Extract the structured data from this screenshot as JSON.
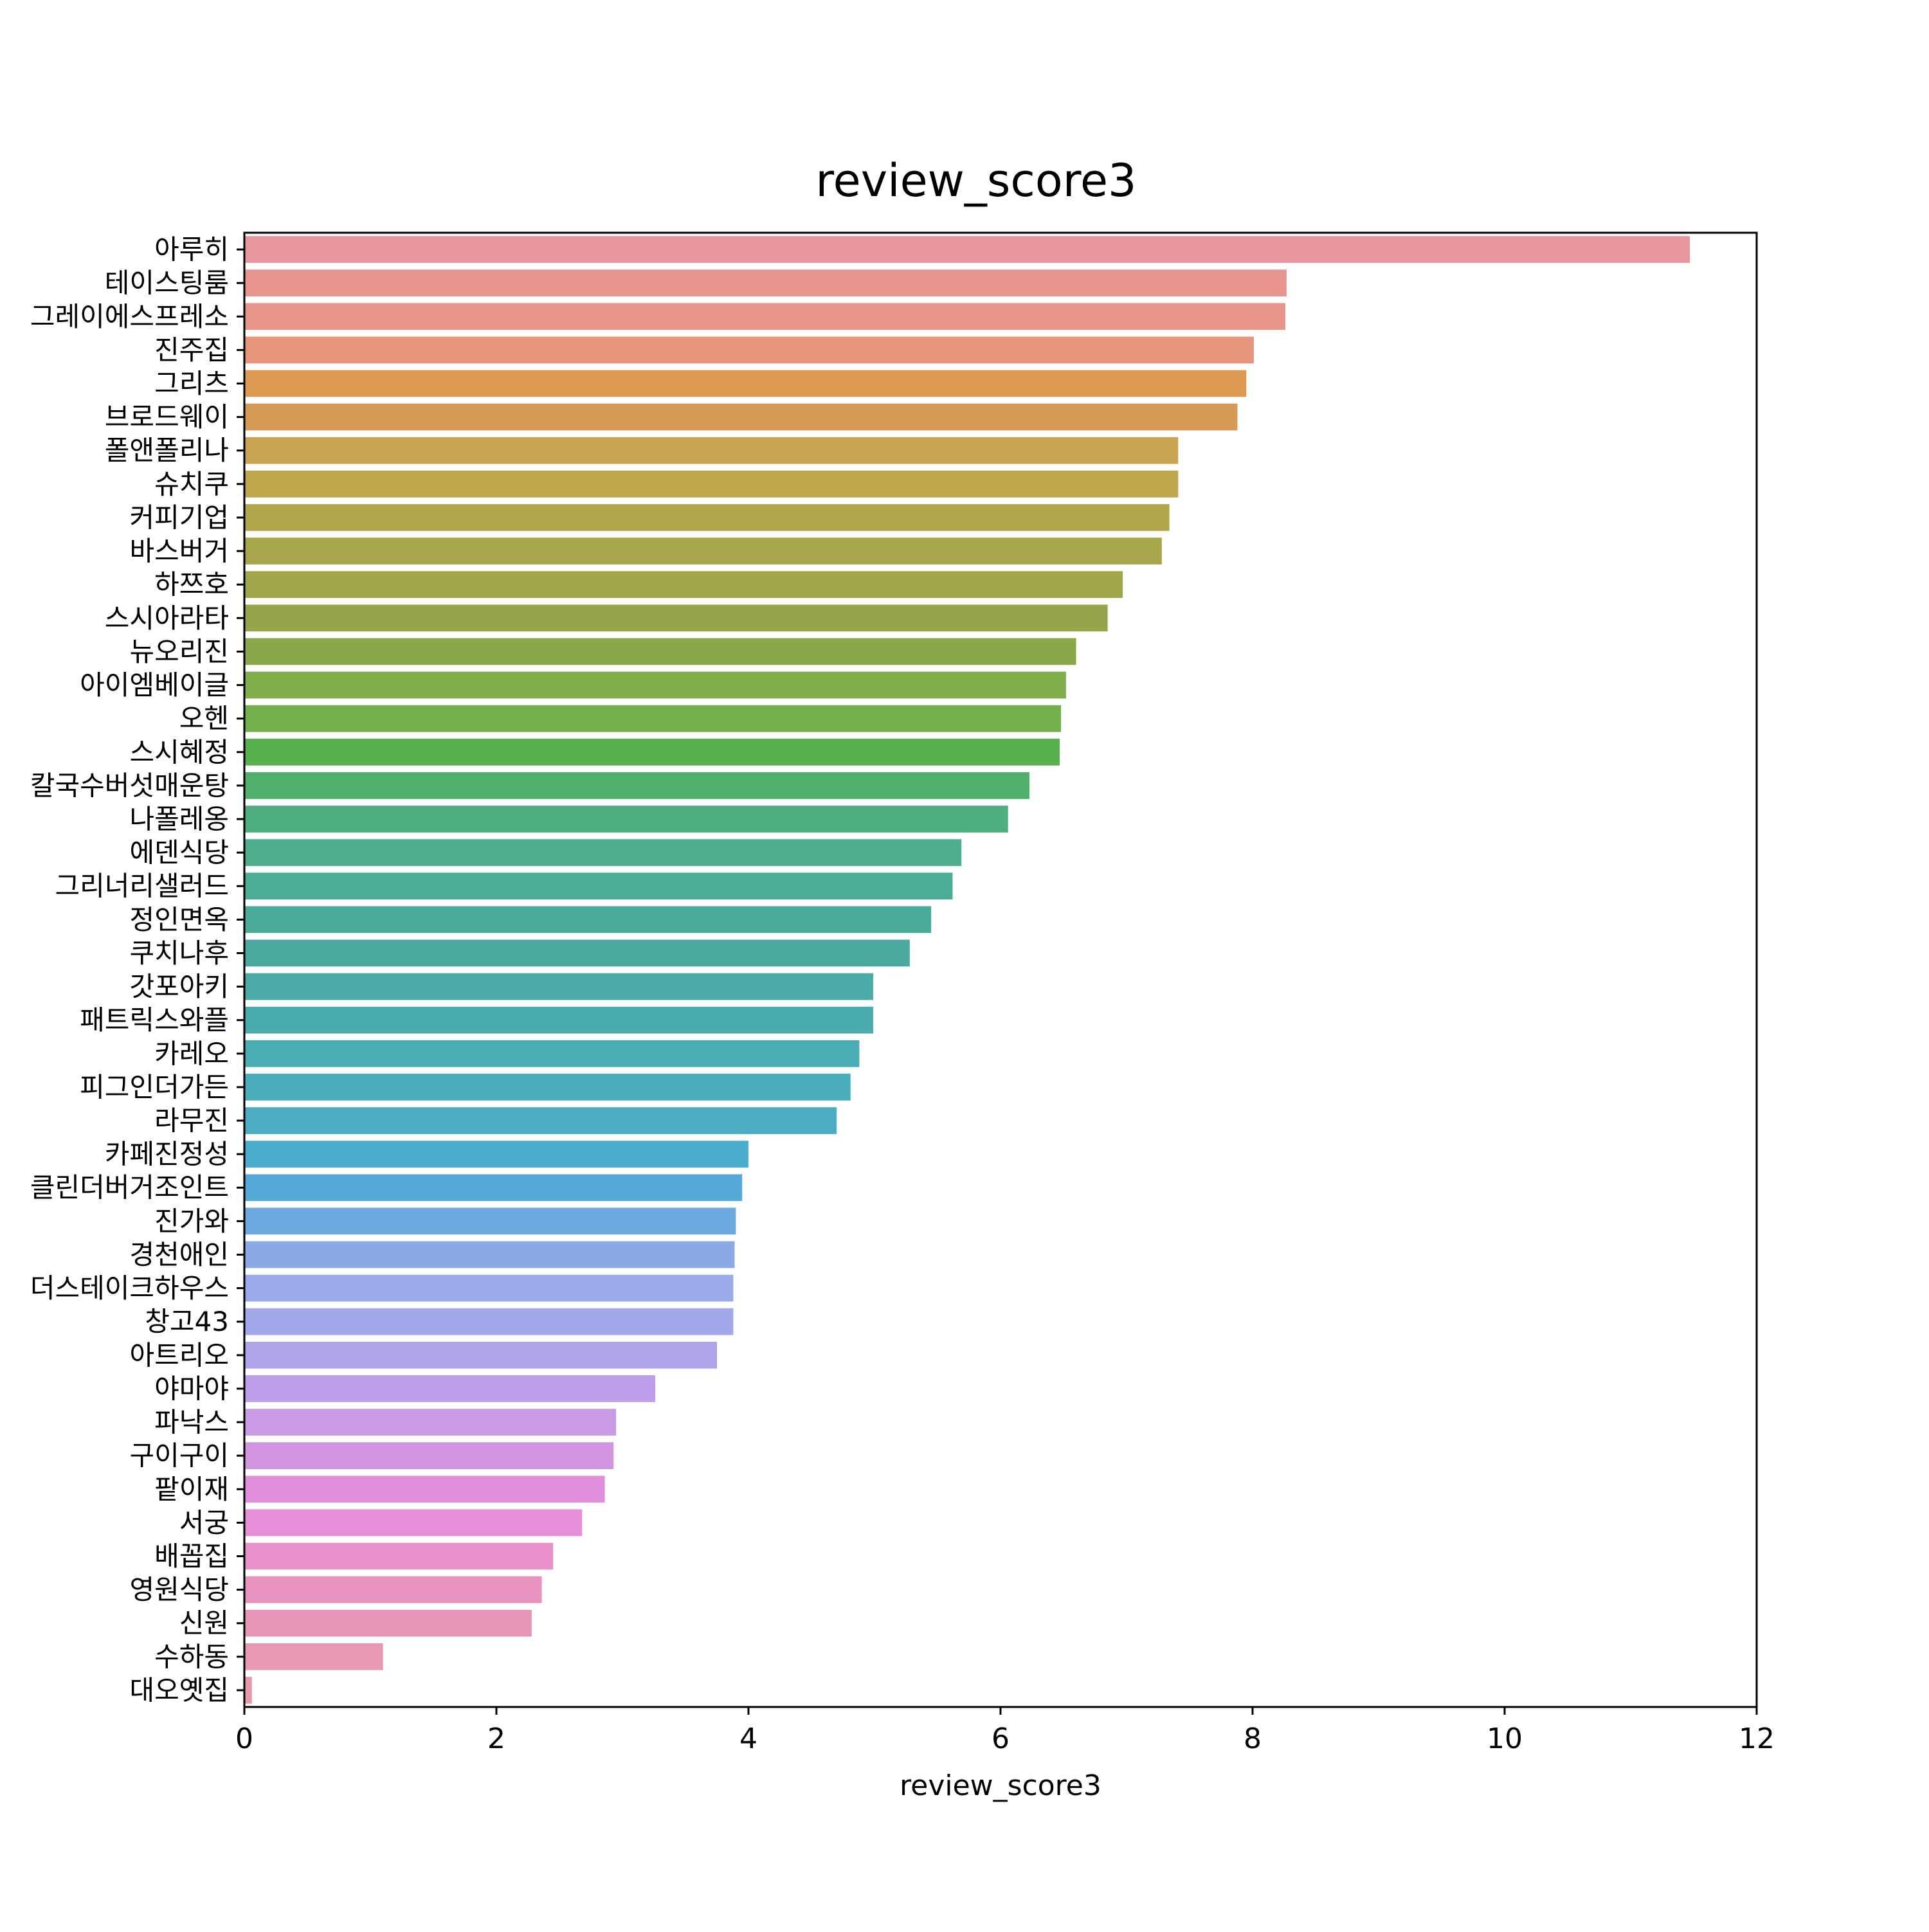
{
  "chart_data": {
    "type": "bar",
    "orientation": "horizontal",
    "title": "review_score3",
    "xlabel": "review_score3",
    "ylabel": "",
    "xlim": [
      0,
      12
    ],
    "xticks": [
      "0",
      "2",
      "4",
      "6",
      "8",
      "10",
      "12"
    ],
    "grid": false,
    "legend": "none",
    "categories": [
      "아루히",
      "테이스팅룸",
      "그레이에스프레소",
      "진주집",
      "그리츠",
      "브로드웨이",
      "폴앤폴리나",
      "슈치쿠",
      "커피기업",
      "바스버거",
      "하쯔호",
      "스시아라타",
      "뉴오리진",
      "아이엠베이글",
      "오헨",
      "스시혜정",
      "칼국수버섯매운탕",
      "나폴레옹",
      "에덴식당",
      "그리너리샐러드",
      "정인면옥",
      "쿠치나후",
      "갓포아키",
      "패트릭스와플",
      "카레오",
      "피그인더가든",
      "라무진",
      "카페진정성",
      "클린더버거조인트",
      "진가와",
      "경천애인",
      "더스테이크하우스",
      "창고43",
      "아트리오",
      "야마야",
      "파낙스",
      "구이구이",
      "팥이재",
      "서궁",
      "배꼽집",
      "영원식당",
      "신원",
      "수하동",
      "대오옛집"
    ],
    "values": [
      11.47,
      8.27,
      8.26,
      8.01,
      7.95,
      7.88,
      7.41,
      7.41,
      7.34,
      7.28,
      6.97,
      6.85,
      6.6,
      6.52,
      6.48,
      6.47,
      6.23,
      6.06,
      5.69,
      5.62,
      5.45,
      5.28,
      4.99,
      4.99,
      4.88,
      4.81,
      4.7,
      4.0,
      3.95,
      3.9,
      3.89,
      3.88,
      3.88,
      3.75,
      3.26,
      2.95,
      2.93,
      2.86,
      2.68,
      2.45,
      2.36,
      2.28,
      1.1,
      0.06
    ],
    "colors": [
      "#e8959d",
      "#e8958f",
      "#e8958a",
      "#e5967a",
      "#de9a52",
      "#d59b56",
      "#c9a350",
      "#bfa54c",
      "#b1a64a",
      "#a8a64a",
      "#a1a64a",
      "#95a54a",
      "#8aa84a",
      "#7fae4a",
      "#72b04b",
      "#56b14d",
      "#4eb06a",
      "#4daf7d",
      "#4daf8b",
      "#4cae94",
      "#4bab9b",
      "#4aaaa0",
      "#4aaba7",
      "#4aacad",
      "#4aadb5",
      "#4aadbc",
      "#4aadc3",
      "#4aadcb",
      "#54a9d6",
      "#6ba9e0",
      "#8aaae4",
      "#9baae8",
      "#a3a8ea",
      "#b0a3ea",
      "#bd9eea",
      "#c99be5",
      "#d294df",
      "#df8edc",
      "#e68ed7",
      "#e890c9",
      "#e892bf",
      "#e896b8",
      "#e898b0",
      "#e89aaa"
    ]
  }
}
